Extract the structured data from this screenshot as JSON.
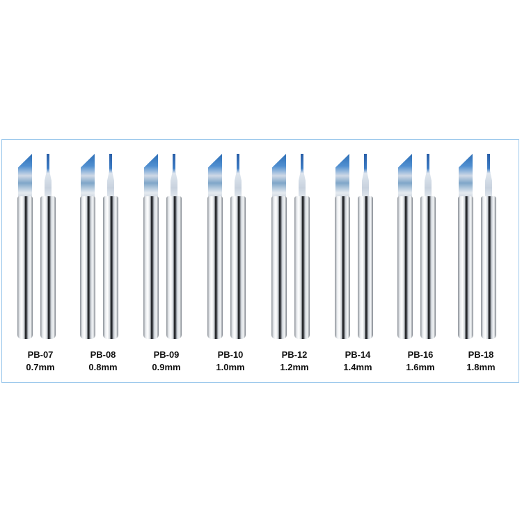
{
  "colors": {
    "frame_border": "#9cc8ec",
    "coating": "#2f6fb6"
  },
  "products": [
    {
      "code": "PB-07",
      "size": "0.7mm"
    },
    {
      "code": "PB-08",
      "size": "0.8mm"
    },
    {
      "code": "PB-09",
      "size": "0.9mm"
    },
    {
      "code": "PB-10",
      "size": "1.0mm"
    },
    {
      "code": "PB-12",
      "size": "1.2mm"
    },
    {
      "code": "PB-14",
      "size": "1.4mm"
    },
    {
      "code": "PB-16",
      "size": "1.6mm"
    },
    {
      "code": "PB-18",
      "size": "1.8mm"
    }
  ]
}
